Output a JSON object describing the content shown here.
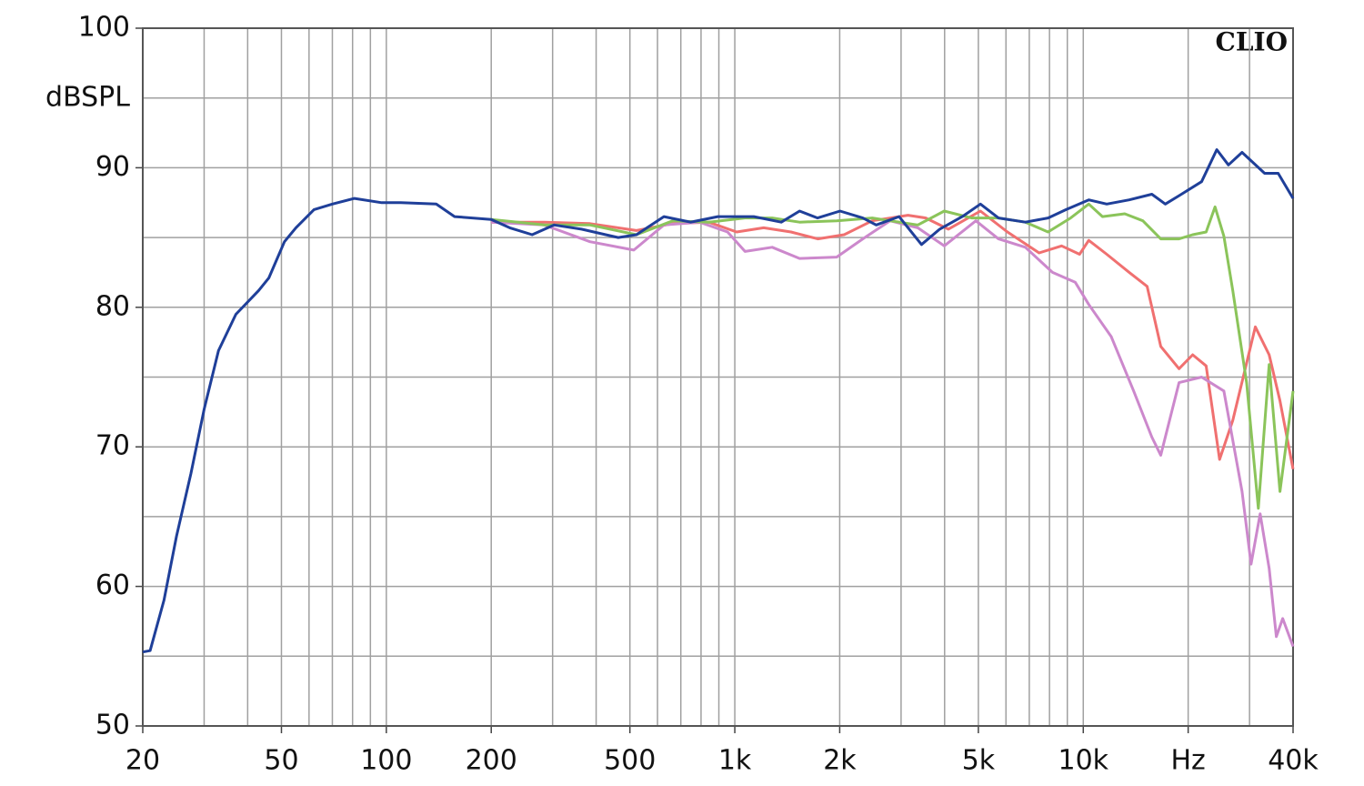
{
  "chart_data": {
    "type": "line",
    "xscale": "log",
    "grid": true,
    "y_label": "dBSPL",
    "watermark": "CLIO",
    "xlim": [
      20,
      40000
    ],
    "ylim": [
      50,
      100
    ],
    "yticks": [
      50,
      60,
      70,
      80,
      90,
      100
    ],
    "ygrid": [
      55,
      65,
      75,
      85,
      95
    ],
    "xticks": [
      20,
      50,
      100,
      200,
      500,
      {
        "value": 1000,
        "label": "1k"
      },
      {
        "value": 2000,
        "label": "2k"
      },
      {
        "value": 5000,
        "label": "5k"
      },
      {
        "value": 10000,
        "label": "10k"
      },
      {
        "value": 20000,
        "label": "Hz"
      },
      {
        "value": 40000,
        "label": "40k"
      }
    ],
    "xgrid": [
      20,
      30,
      40,
      50,
      60,
      70,
      80,
      90,
      100,
      200,
      300,
      400,
      500,
      600,
      700,
      800,
      900,
      1000,
      2000,
      3000,
      4000,
      5000,
      6000,
      7000,
      8000,
      9000,
      10000,
      20000,
      30000,
      40000
    ],
    "series": [
      {
        "color": "#f07070",
        "x": [
          200,
          284,
          384,
          522,
          664,
          842,
          1012,
          1210,
          1450,
          1730,
          2060,
          2480,
          3140,
          3530,
          4100,
          5070,
          6060,
          7470,
          8670,
          9760,
          10370,
          11680,
          13550,
          15250,
          16690,
          18830,
          20600,
          22520,
          24610,
          26860,
          31180,
          34150,
          36690,
          40000
        ],
        "values": [
          86.1,
          86.1,
          86.0,
          85.5,
          86.0,
          86.1,
          85.4,
          85.7,
          85.4,
          84.9,
          85.2,
          86.2,
          86.6,
          86.4,
          85.6,
          86.9,
          85.4,
          83.9,
          84.4,
          83.8,
          84.8,
          83.8,
          82.5,
          81.5,
          77.2,
          75.6,
          76.6,
          75.8,
          69.1,
          71.9,
          78.6,
          76.6,
          73.3,
          68.4
        ]
      },
      {
        "color": "#cc88cc",
        "x": [
          200,
          284,
          384,
          513,
          626,
          792,
          953,
          1070,
          1280,
          1534,
          1960,
          2330,
          2790,
          3350,
          3990,
          4920,
          5710,
          6820,
          8160,
          9480,
          10370,
          12030,
          13950,
          15730,
          16690,
          18830,
          21850,
          25320,
          28560,
          30300,
          32180,
          34150,
          35810,
          37360,
          40000
        ],
        "values": [
          86.1,
          85.9,
          84.7,
          84.1,
          85.9,
          86.1,
          85.4,
          84.0,
          84.3,
          83.5,
          83.6,
          84.9,
          86.2,
          85.7,
          84.4,
          86.2,
          84.9,
          84.3,
          82.5,
          81.8,
          80.2,
          77.9,
          74.0,
          70.7,
          69.4,
          74.6,
          75.0,
          74.0,
          66.8,
          61.6,
          65.2,
          61.3,
          56.4,
          57.7,
          55.7
        ]
      },
      {
        "color": "#8bc45a",
        "x": [
          200,
          284,
          384,
          522,
          664,
          842,
          1070,
          1280,
          1534,
          1960,
          2480,
          3350,
          3990,
          4780,
          5710,
          6820,
          7920,
          9200,
          10370,
          11350,
          13150,
          14820,
          16690,
          18830,
          20600,
          22520,
          23890,
          25320,
          26860,
          29420,
          31800,
          34150,
          36690,
          40000
        ],
        "values": [
          86.3,
          85.9,
          85.9,
          85.2,
          86.2,
          86.1,
          86.4,
          86.4,
          86.1,
          86.2,
          86.4,
          85.9,
          86.9,
          86.4,
          86.4,
          86.1,
          85.4,
          86.4,
          87.4,
          86.5,
          86.7,
          86.2,
          84.9,
          84.9,
          85.2,
          85.4,
          87.2,
          85.1,
          81.2,
          74.6,
          65.6,
          75.9,
          66.8,
          74.0
        ]
      },
      {
        "color": "#1f3f99",
        "x": [
          20,
          21,
          23,
          25,
          27.5,
          30,
          33,
          37,
          43,
          46,
          51,
          55,
          62,
          70,
          81,
          97,
          110,
          139,
          157,
          200,
          226,
          262,
          303,
          363,
          463,
          522,
          626,
          747,
          894,
          1134,
          1360,
          1534,
          1728,
          2005,
          2330,
          2546,
          2960,
          3434,
          3872,
          4495,
          5069,
          5708,
          6822,
          7924,
          8927,
          10370,
          11680,
          13550,
          15730,
          17200,
          18830,
          21850,
          24160,
          26100,
          28560,
          33150,
          36250,
          40000
        ],
        "values": [
          55.3,
          55.4,
          59.0,
          63.6,
          68.1,
          72.7,
          76.9,
          79.5,
          81.2,
          82.1,
          84.7,
          85.7,
          87.0,
          87.4,
          87.8,
          87.5,
          87.5,
          87.4,
          86.5,
          86.3,
          85.7,
          85.2,
          85.9,
          85.6,
          85.0,
          85.2,
          86.5,
          86.1,
          86.5,
          86.5,
          86.1,
          86.9,
          86.4,
          86.9,
          86.4,
          85.9,
          86.5,
          84.5,
          85.6,
          86.5,
          87.4,
          86.4,
          86.1,
          86.4,
          87.0,
          87.7,
          87.4,
          87.7,
          88.1,
          87.4,
          88.0,
          89.0,
          91.3,
          90.2,
          91.1,
          89.6,
          89.6,
          87.8
        ]
      }
    ]
  }
}
